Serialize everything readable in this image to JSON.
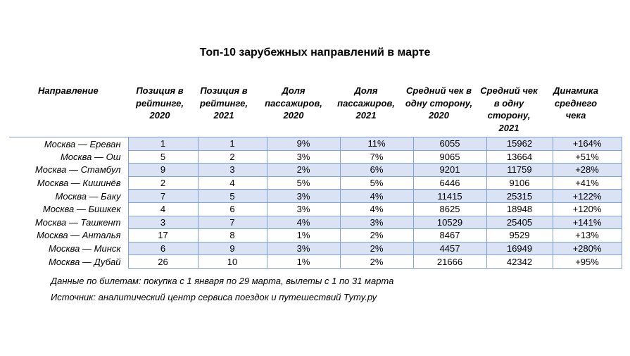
{
  "title": "Топ-10 зарубежных направлений в марте",
  "headers": {
    "destination": "Направление",
    "rank2020": "Позиция в рейтинге, 2020",
    "rank2021": "Позиция в рейтинге, 2021",
    "share2020": "Доля пассажиров, 2020",
    "share2021": "Доля пассажиров, 2021",
    "check2020": "Средний чек в одну сторону, 2020",
    "check2021": "Средний чек в одну сторону, 2021",
    "dynamics": "Динамика среднего чека"
  },
  "rows": [
    {
      "destination": "Москва — Ереван",
      "rank2020": "1",
      "rank2021": "1",
      "share2020": "9%",
      "share2021": "11%",
      "check2020": "6055",
      "check2021": "15962",
      "dynamics": "+164%"
    },
    {
      "destination": "Москва — Ош",
      "rank2020": "5",
      "rank2021": "2",
      "share2020": "3%",
      "share2021": "7%",
      "check2020": "9065",
      "check2021": "13664",
      "dynamics": "+51%"
    },
    {
      "destination": "Москва — Стамбул",
      "rank2020": "9",
      "rank2021": "3",
      "share2020": "2%",
      "share2021": "6%",
      "check2020": "9201",
      "check2021": "11759",
      "dynamics": "+28%"
    },
    {
      "destination": "Москва — Кишинёв",
      "rank2020": "2",
      "rank2021": "4",
      "share2020": "5%",
      "share2021": "5%",
      "check2020": "6446",
      "check2021": "9106",
      "dynamics": "+41%"
    },
    {
      "destination": "Москва — Баку",
      "rank2020": "7",
      "rank2021": "5",
      "share2020": "3%",
      "share2021": "4%",
      "check2020": "11415",
      "check2021": "25315",
      "dynamics": "+122%"
    },
    {
      "destination": "Москва — Бишкек",
      "rank2020": "4",
      "rank2021": "6",
      "share2020": "3%",
      "share2021": "4%",
      "check2020": "8625",
      "check2021": "18948",
      "dynamics": "+120%"
    },
    {
      "destination": "Москва — Ташкент",
      "rank2020": "3",
      "rank2021": "7",
      "share2020": "4%",
      "share2021": "3%",
      "check2020": "10529",
      "check2021": "25405",
      "dynamics": "+141%"
    },
    {
      "destination": "Москва — Анталья",
      "rank2020": "17",
      "rank2021": "8",
      "share2020": "1%",
      "share2021": "2%",
      "check2020": "8467",
      "check2021": "9529",
      "dynamics": "+13%"
    },
    {
      "destination": "Москва — Минск",
      "rank2020": "6",
      "rank2021": "9",
      "share2020": "3%",
      "share2021": "2%",
      "check2020": "4457",
      "check2021": "16949",
      "dynamics": "+280%"
    },
    {
      "destination": "Москва — Дубай",
      "rank2020": "26",
      "rank2021": "10",
      "share2020": "1%",
      "share2021": "2%",
      "check2020": "21666",
      "check2021": "42342",
      "dynamics": "+95%"
    }
  ],
  "notes": {
    "data": "Данные по билетам: покупка с 1 января по 29 марта, вылеты с 1 по 31 марта",
    "source": "Источник: аналитический центр сервиса поездок и путешествий Туту.ру"
  },
  "colors": {
    "shade": "#dae3f3",
    "border": "#7fa2d6"
  }
}
